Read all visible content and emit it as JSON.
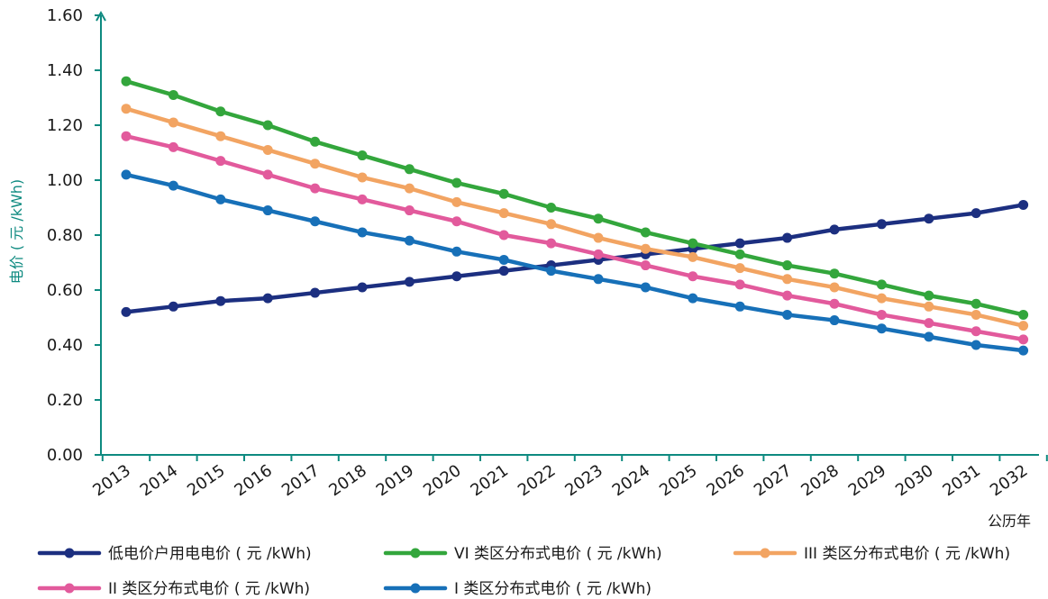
{
  "chart_data": {
    "type": "line",
    "title": "",
    "xlabel": "公历年",
    "ylabel": "电价 ( 元 /kWh)",
    "ylim": [
      0,
      1.6
    ],
    "yticks": [
      "0.00",
      "0.20",
      "0.40",
      "0.60",
      "0.80",
      "1.00",
      "1.20",
      "1.40",
      "1.60"
    ],
    "ytick_values": [
      0,
      0.2,
      0.4,
      0.6,
      0.8,
      1.0,
      1.2,
      1.4,
      1.6
    ],
    "categories": [
      "2013",
      "2014",
      "2015",
      "2016",
      "2017",
      "2018",
      "2019",
      "2020",
      "2021",
      "2022",
      "2023",
      "2024",
      "2025",
      "2026",
      "2027",
      "2028",
      "2029",
      "2030",
      "2031",
      "2032"
    ],
    "grid": false,
    "legend_position": "bottom",
    "axis_color": "#0e8a80",
    "series": [
      {
        "name": "低电价户用电电价 ( 元 /kWh)",
        "color": "#1c2f80",
        "values": [
          0.52,
          0.54,
          0.56,
          0.57,
          0.59,
          0.61,
          0.63,
          0.65,
          0.67,
          0.69,
          0.71,
          0.73,
          0.75,
          0.77,
          0.79,
          0.82,
          0.84,
          0.86,
          0.88,
          0.91
        ]
      },
      {
        "name": "VI 类区分布式电价 ( 元 /kWh)",
        "color": "#33a63c",
        "values": [
          1.36,
          1.31,
          1.25,
          1.2,
          1.14,
          1.09,
          1.04,
          0.99,
          0.95,
          0.9,
          0.86,
          0.81,
          0.77,
          0.73,
          0.69,
          0.66,
          0.62,
          0.58,
          0.55,
          0.51
        ]
      },
      {
        "name": "III 类区分布式电价 ( 元 /kWh)",
        "color": "#f2a462",
        "values": [
          1.26,
          1.21,
          1.16,
          1.11,
          1.06,
          1.01,
          0.97,
          0.92,
          0.88,
          0.84,
          0.79,
          0.75,
          0.72,
          0.68,
          0.64,
          0.61,
          0.57,
          0.54,
          0.51,
          0.47
        ]
      },
      {
        "name": "II 类区分布式电价 ( 元 /kWh)",
        "color": "#e25a9c",
        "values": [
          1.16,
          1.12,
          1.07,
          1.02,
          0.97,
          0.93,
          0.89,
          0.85,
          0.8,
          0.77,
          0.73,
          0.69,
          0.65,
          0.62,
          0.58,
          0.55,
          0.51,
          0.48,
          0.45,
          0.42
        ]
      },
      {
        "name": "I 类区分布式电价 ( 元 /kWh)",
        "color": "#1770b8",
        "values": [
          1.02,
          0.98,
          0.93,
          0.89,
          0.85,
          0.81,
          0.78,
          0.74,
          0.71,
          0.67,
          0.64,
          0.61,
          0.57,
          0.54,
          0.51,
          0.49,
          0.46,
          0.43,
          0.4,
          0.38
        ]
      }
    ]
  }
}
